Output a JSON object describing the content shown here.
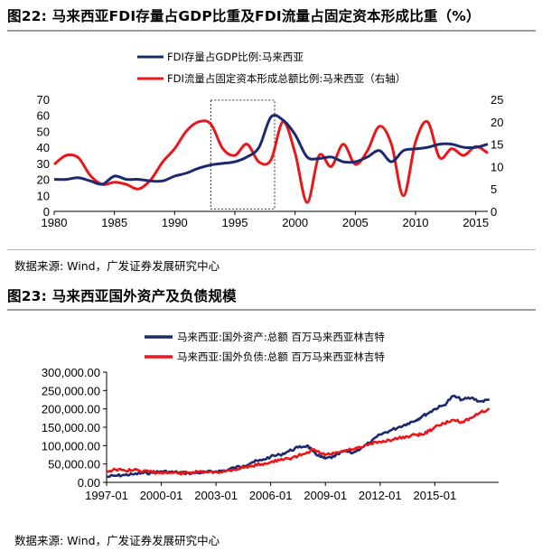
{
  "source_text": "数据来源:   Wind，广发证券发展研究中心",
  "colors": {
    "navy": "#1b2a6e",
    "red": "#e8171a",
    "rule": "#9a9a9a"
  },
  "chart_data": [
    {
      "type": "line",
      "title": "图22:  马来西亚FDI存量占GDP比重及FDI流量占固定资本形成比重（%）",
      "x_ticks": [
        1980,
        1985,
        1990,
        1995,
        2000,
        2005,
        2010,
        2015
      ],
      "xlim": [
        1980,
        2016
      ],
      "ylim_left": [
        0,
        70
      ],
      "y_ticks_left": [
        0,
        10,
        20,
        30,
        40,
        50,
        60,
        70
      ],
      "ylim_right": [
        0,
        25
      ],
      "y_ticks_right": [
        0,
        5,
        10,
        15,
        20,
        25
      ],
      "annotation": "dashed box highlighting 1993-1998",
      "highlight_x": [
        1993,
        1998.3
      ],
      "series": [
        {
          "name": "FDI存量占GDP比例:马来西亚",
          "axis": "left",
          "color": "#1b2a6e",
          "x": [
            1980,
            1981,
            1982,
            1983,
            1984,
            1985,
            1986,
            1987,
            1988,
            1989,
            1990,
            1991,
            1992,
            1993,
            1994,
            1995,
            1996,
            1997,
            1998,
            1999,
            2000,
            2001,
            2002,
            2003,
            2004,
            2005,
            2006,
            2007,
            2008,
            2009,
            2010,
            2011,
            2012,
            2013,
            2014,
            2015,
            2016
          ],
          "values": [
            20,
            20,
            21,
            19,
            17,
            22,
            20,
            20,
            19,
            19,
            22,
            24,
            27,
            29,
            30,
            31,
            34,
            40,
            59,
            57,
            48,
            34,
            33,
            34,
            31,
            31,
            34,
            38,
            31,
            38,
            39,
            40,
            42,
            42,
            40,
            40,
            42
          ]
        },
        {
          "name": "FDI流量占固定资本形成总额比例:马来西亚（右轴）",
          "axis": "right",
          "color": "#e8171a",
          "x": [
            1980,
            1981,
            1982,
            1983,
            1984,
            1985,
            1986,
            1987,
            1988,
            1989,
            1990,
            1991,
            1992,
            1993,
            1994,
            1995,
            1996,
            1997,
            1998,
            1999,
            2000,
            2001,
            2002,
            2003,
            2004,
            2005,
            2006,
            2007,
            2008,
            2009,
            2010,
            2011,
            2012,
            2013,
            2014,
            2015,
            2016
          ],
          "values": [
            10.5,
            12.5,
            12,
            8,
            6,
            6.5,
            6,
            5,
            7,
            11,
            14,
            18,
            20,
            19.5,
            14,
            12.5,
            15,
            11,
            11.5,
            20,
            13,
            2,
            12.5,
            10,
            15,
            10.5,
            13.5,
            19,
            15,
            3.5,
            15.5,
            20,
            12,
            14,
            12.5,
            14.5,
            13
          ]
        }
      ]
    },
    {
      "type": "line",
      "title": "图23:  马来西亚国外资产及负债规模",
      "x_ticks": [
        "1997-01",
        "2000-01",
        "2003-01",
        "2006-01",
        "2009-01",
        "2012-01",
        "2015-01"
      ],
      "xlim": [
        1997.0,
        2018.5
      ],
      "ylim": [
        0,
        300000
      ],
      "y_ticks": [
        "0.00",
        "50,000.00",
        "100,000.00",
        "150,000.00",
        "200,000.00",
        "250,000.00",
        "300,000.00"
      ],
      "series": [
        {
          "name": "马来西亚:国外资产:总额 百万马来西亚林吉特",
          "color": "#1b2a6e",
          "x": [
            1997.0,
            1997.5,
            1998.0,
            1998.5,
            1999.0,
            1999.5,
            2000.0,
            2000.5,
            2001.0,
            2001.5,
            2002.0,
            2002.5,
            2003.0,
            2003.5,
            2004.0,
            2004.5,
            2005.0,
            2005.5,
            2006.0,
            2006.5,
            2007.0,
            2007.5,
            2008.0,
            2008.3,
            2008.7,
            2009.0,
            2009.5,
            2010.0,
            2010.5,
            2011.0,
            2011.5,
            2012.0,
            2012.5,
            2013.0,
            2013.5,
            2014.0,
            2014.3,
            2014.7,
            2015.0,
            2015.5,
            2016.0,
            2016.5,
            2017.0,
            2017.5,
            2018.0
          ],
          "values": [
            15000,
            18000,
            20000,
            22000,
            25000,
            26000,
            30000,
            28000,
            27000,
            25000,
            26000,
            28000,
            30000,
            32000,
            40000,
            45000,
            55000,
            60000,
            70000,
            75000,
            85000,
            95000,
            100000,
            85000,
            70000,
            65000,
            70000,
            85000,
            80000,
            95000,
            110000,
            130000,
            140000,
            150000,
            160000,
            170000,
            180000,
            190000,
            200000,
            210000,
            235000,
            225000,
            230000,
            220000,
            225000
          ]
        },
        {
          "name": "马来西亚:国外负债:总额 百万马来西亚林吉特",
          "color": "#e8171a",
          "x": [
            1997.0,
            1997.5,
            1998.0,
            1998.5,
            1999.0,
            1999.5,
            2000.0,
            2000.5,
            2001.0,
            2001.5,
            2002.0,
            2002.5,
            2003.0,
            2003.5,
            2004.0,
            2004.5,
            2005.0,
            2005.5,
            2006.0,
            2006.5,
            2007.0,
            2007.5,
            2008.0,
            2008.3,
            2008.7,
            2009.0,
            2009.5,
            2010.0,
            2010.5,
            2011.0,
            2011.5,
            2012.0,
            2012.5,
            2013.0,
            2013.5,
            2014.0,
            2014.3,
            2014.7,
            2015.0,
            2015.5,
            2016.0,
            2016.5,
            2017.0,
            2017.5,
            2018.0
          ],
          "values": [
            30000,
            35000,
            32000,
            34000,
            30000,
            28000,
            27000,
            26000,
            25000,
            26000,
            28000,
            27000,
            28000,
            30000,
            35000,
            40000,
            45000,
            50000,
            55000,
            60000,
            65000,
            72000,
            82000,
            88000,
            80000,
            75000,
            78000,
            85000,
            90000,
            95000,
            105000,
            110000,
            115000,
            120000,
            125000,
            130000,
            130000,
            140000,
            150000,
            160000,
            170000,
            165000,
            175000,
            190000,
            200000
          ]
        }
      ]
    }
  ]
}
